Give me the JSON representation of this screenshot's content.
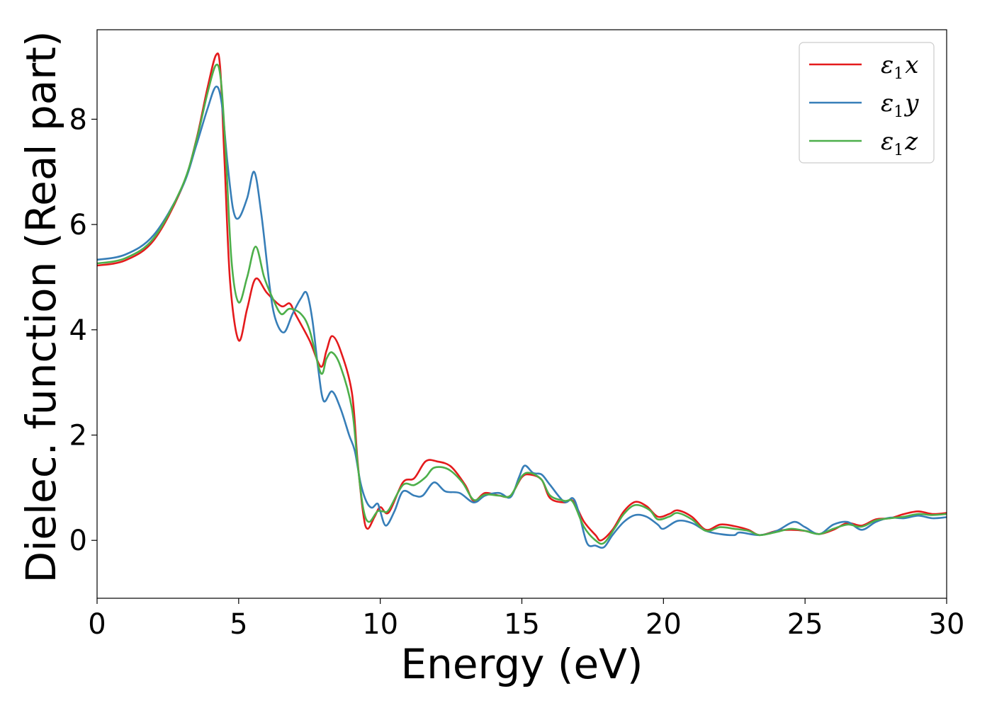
{
  "chart_data": {
    "type": "line",
    "xlabel": "Energy (eV)",
    "ylabel": "Dielec. function (Real part)",
    "xlim": [
      0,
      30
    ],
    "ylim": [
      -1.1,
      9.7
    ],
    "xticks": [
      0,
      5,
      10,
      15,
      20,
      25,
      30
    ],
    "yticks": [
      0,
      2,
      4,
      6,
      8
    ],
    "grid": false,
    "legend_position": "top-right",
    "series": [
      {
        "name": "ε1x",
        "legend_base": "ε",
        "legend_sub": "1",
        "legend_var": "x",
        "color": "#e41a1c",
        "points": [
          [
            0,
            5.22
          ],
          [
            1,
            5.32
          ],
          [
            2,
            5.7
          ],
          [
            3,
            6.7
          ],
          [
            3.5,
            7.6
          ],
          [
            3.9,
            8.6
          ],
          [
            4.2,
            9.22
          ],
          [
            4.35,
            8.95
          ],
          [
            4.5,
            7.2
          ],
          [
            4.7,
            4.9
          ],
          [
            5.0,
            3.8
          ],
          [
            5.3,
            4.4
          ],
          [
            5.6,
            4.97
          ],
          [
            6.0,
            4.7
          ],
          [
            6.5,
            4.45
          ],
          [
            6.8,
            4.5
          ],
          [
            7.0,
            4.3
          ],
          [
            7.5,
            3.8
          ],
          [
            7.9,
            3.3
          ],
          [
            8.1,
            3.6
          ],
          [
            8.3,
            3.88
          ],
          [
            8.6,
            3.6
          ],
          [
            9.0,
            2.8
          ],
          [
            9.2,
            1.5
          ],
          [
            9.4,
            0.5
          ],
          [
            9.55,
            0.22
          ],
          [
            9.8,
            0.45
          ],
          [
            10.0,
            0.63
          ],
          [
            10.3,
            0.53
          ],
          [
            10.8,
            1.1
          ],
          [
            11.2,
            1.18
          ],
          [
            11.6,
            1.5
          ],
          [
            12.0,
            1.5
          ],
          [
            12.5,
            1.4
          ],
          [
            13.0,
            1.05
          ],
          [
            13.3,
            0.75
          ],
          [
            13.7,
            0.9
          ],
          [
            14.2,
            0.85
          ],
          [
            14.6,
            0.85
          ],
          [
            15.0,
            1.2
          ],
          [
            15.3,
            1.25
          ],
          [
            15.7,
            1.15
          ],
          [
            16.0,
            0.8
          ],
          [
            16.5,
            0.72
          ],
          [
            16.8,
            0.75
          ],
          [
            17.2,
            0.35
          ],
          [
            17.6,
            0.1
          ],
          [
            17.8,
            0.0
          ],
          [
            18.2,
            0.2
          ],
          [
            18.6,
            0.55
          ],
          [
            19.0,
            0.73
          ],
          [
            19.4,
            0.65
          ],
          [
            19.8,
            0.45
          ],
          [
            20.2,
            0.5
          ],
          [
            20.5,
            0.57
          ],
          [
            21.0,
            0.45
          ],
          [
            21.5,
            0.2
          ],
          [
            22.0,
            0.3
          ],
          [
            22.5,
            0.27
          ],
          [
            23.0,
            0.2
          ],
          [
            23.4,
            0.1
          ],
          [
            24.0,
            0.18
          ],
          [
            24.5,
            0.2
          ],
          [
            25.0,
            0.18
          ],
          [
            25.5,
            0.12
          ],
          [
            26.0,
            0.2
          ],
          [
            26.5,
            0.33
          ],
          [
            27.0,
            0.28
          ],
          [
            27.5,
            0.4
          ],
          [
            28.0,
            0.42
          ],
          [
            28.5,
            0.5
          ],
          [
            29.0,
            0.55
          ],
          [
            29.5,
            0.5
          ],
          [
            30,
            0.52
          ]
        ]
      },
      {
        "name": "ε1y",
        "legend_base": "ε",
        "legend_sub": "1",
        "legend_var": "y",
        "color": "#377eb8",
        "points": [
          [
            0,
            5.33
          ],
          [
            1,
            5.43
          ],
          [
            2,
            5.8
          ],
          [
            3,
            6.7
          ],
          [
            3.5,
            7.5
          ],
          [
            3.9,
            8.2
          ],
          [
            4.2,
            8.62
          ],
          [
            4.4,
            8.3
          ],
          [
            4.6,
            7.2
          ],
          [
            4.8,
            6.3
          ],
          [
            5.0,
            6.12
          ],
          [
            5.3,
            6.5
          ],
          [
            5.55,
            7.0
          ],
          [
            5.8,
            6.2
          ],
          [
            6.1,
            4.8
          ],
          [
            6.3,
            4.2
          ],
          [
            6.6,
            3.95
          ],
          [
            6.9,
            4.3
          ],
          [
            7.2,
            4.6
          ],
          [
            7.4,
            4.7
          ],
          [
            7.6,
            4.2
          ],
          [
            7.8,
            3.3
          ],
          [
            8.0,
            2.65
          ],
          [
            8.3,
            2.83
          ],
          [
            8.6,
            2.5
          ],
          [
            8.9,
            2.0
          ],
          [
            9.1,
            1.7
          ],
          [
            9.3,
            1.1
          ],
          [
            9.5,
            0.75
          ],
          [
            9.7,
            0.62
          ],
          [
            9.9,
            0.7
          ],
          [
            10.0,
            0.55
          ],
          [
            10.2,
            0.28
          ],
          [
            10.5,
            0.55
          ],
          [
            10.8,
            0.93
          ],
          [
            11.2,
            0.85
          ],
          [
            11.5,
            0.85
          ],
          [
            11.9,
            1.1
          ],
          [
            12.3,
            0.93
          ],
          [
            12.8,
            0.9
          ],
          [
            13.3,
            0.72
          ],
          [
            13.7,
            0.85
          ],
          [
            14.2,
            0.9
          ],
          [
            14.6,
            0.82
          ],
          [
            14.9,
            1.2
          ],
          [
            15.1,
            1.42
          ],
          [
            15.4,
            1.28
          ],
          [
            15.7,
            1.25
          ],
          [
            16.0,
            1.05
          ],
          [
            16.5,
            0.73
          ],
          [
            16.8,
            0.8
          ],
          [
            17.0,
            0.55
          ],
          [
            17.3,
            -0.05
          ],
          [
            17.6,
            -0.1
          ],
          [
            17.9,
            -0.13
          ],
          [
            18.2,
            0.1
          ],
          [
            18.6,
            0.35
          ],
          [
            19.0,
            0.48
          ],
          [
            19.4,
            0.45
          ],
          [
            19.8,
            0.3
          ],
          [
            20.0,
            0.22
          ],
          [
            20.5,
            0.37
          ],
          [
            21.0,
            0.33
          ],
          [
            21.5,
            0.18
          ],
          [
            22.0,
            0.12
          ],
          [
            22.5,
            0.1
          ],
          [
            22.7,
            0.15
          ],
          [
            23.4,
            0.1
          ],
          [
            24.0,
            0.18
          ],
          [
            24.6,
            0.35
          ],
          [
            25.0,
            0.25
          ],
          [
            25.5,
            0.12
          ],
          [
            26.0,
            0.3
          ],
          [
            26.5,
            0.35
          ],
          [
            27.0,
            0.2
          ],
          [
            27.5,
            0.35
          ],
          [
            28.0,
            0.43
          ],
          [
            28.5,
            0.42
          ],
          [
            29.0,
            0.47
          ],
          [
            29.5,
            0.42
          ],
          [
            30,
            0.44
          ]
        ]
      },
      {
        "name": "ε1z",
        "legend_base": "ε",
        "legend_sub": "1",
        "legend_var": "z",
        "color": "#4daf4a",
        "points": [
          [
            0,
            5.26
          ],
          [
            1,
            5.36
          ],
          [
            2,
            5.74
          ],
          [
            3,
            6.72
          ],
          [
            3.5,
            7.58
          ],
          [
            3.9,
            8.5
          ],
          [
            4.2,
            9.03
          ],
          [
            4.38,
            8.7
          ],
          [
            4.55,
            7.3
          ],
          [
            4.75,
            5.3
          ],
          [
            5.0,
            4.52
          ],
          [
            5.3,
            5.0
          ],
          [
            5.6,
            5.58
          ],
          [
            5.9,
            5.0
          ],
          [
            6.2,
            4.6
          ],
          [
            6.5,
            4.3
          ],
          [
            6.8,
            4.4
          ],
          [
            7.2,
            4.3
          ],
          [
            7.5,
            4.0
          ],
          [
            7.9,
            3.18
          ],
          [
            8.1,
            3.45
          ],
          [
            8.3,
            3.57
          ],
          [
            8.6,
            3.3
          ],
          [
            9.0,
            2.5
          ],
          [
            9.2,
            1.45
          ],
          [
            9.4,
            0.6
          ],
          [
            9.6,
            0.35
          ],
          [
            9.9,
            0.55
          ],
          [
            10.1,
            0.55
          ],
          [
            10.3,
            0.58
          ],
          [
            10.8,
            1.05
          ],
          [
            11.2,
            1.05
          ],
          [
            11.6,
            1.2
          ],
          [
            11.9,
            1.38
          ],
          [
            12.4,
            1.35
          ],
          [
            12.9,
            1.1
          ],
          [
            13.3,
            0.77
          ],
          [
            13.7,
            0.87
          ],
          [
            14.2,
            0.85
          ],
          [
            14.6,
            0.85
          ],
          [
            15.0,
            1.22
          ],
          [
            15.3,
            1.28
          ],
          [
            15.7,
            1.15
          ],
          [
            16.0,
            0.85
          ],
          [
            16.5,
            0.75
          ],
          [
            16.8,
            0.73
          ],
          [
            17.2,
            0.25
          ],
          [
            17.6,
            0.0
          ],
          [
            17.9,
            -0.05
          ],
          [
            18.3,
            0.25
          ],
          [
            18.6,
            0.5
          ],
          [
            19.0,
            0.67
          ],
          [
            19.5,
            0.58
          ],
          [
            19.8,
            0.4
          ],
          [
            20.2,
            0.45
          ],
          [
            20.5,
            0.52
          ],
          [
            21.0,
            0.4
          ],
          [
            21.5,
            0.18
          ],
          [
            22.0,
            0.25
          ],
          [
            22.5,
            0.22
          ],
          [
            23.0,
            0.18
          ],
          [
            23.4,
            0.1
          ],
          [
            24.0,
            0.16
          ],
          [
            24.5,
            0.22
          ],
          [
            25.0,
            0.18
          ],
          [
            25.5,
            0.12
          ],
          [
            26.0,
            0.22
          ],
          [
            26.5,
            0.3
          ],
          [
            27.0,
            0.26
          ],
          [
            27.5,
            0.38
          ],
          [
            28.0,
            0.42
          ],
          [
            28.5,
            0.45
          ],
          [
            29.0,
            0.5
          ],
          [
            29.5,
            0.48
          ],
          [
            30,
            0.5
          ]
        ]
      }
    ]
  }
}
